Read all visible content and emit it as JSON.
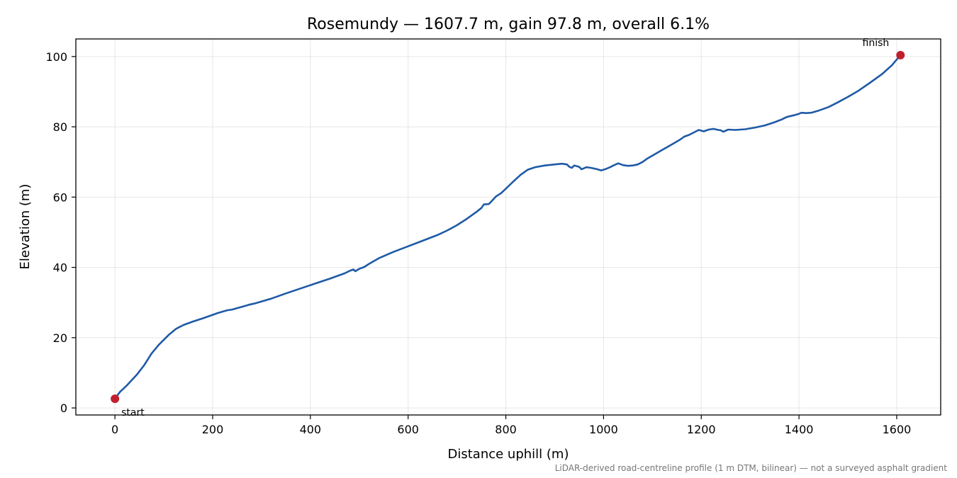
{
  "chart_data": {
    "type": "line",
    "title": "Rosemundy — 1607.7 m, gain 97.8 m, overall 6.1%",
    "xlabel": "Distance uphill (m)",
    "ylabel": "Elevation (m)",
    "xlim": [
      -80,
      1690
    ],
    "ylim": [
      -2,
      105
    ],
    "xticks": [
      0,
      200,
      400,
      600,
      800,
      1000,
      1200,
      1400,
      1600
    ],
    "yticks": [
      0,
      20,
      40,
      60,
      80,
      100
    ],
    "grid": true,
    "series": [
      {
        "color": "#1f5aa6",
        "x": [
          0,
          10,
          25,
          45,
          60,
          75,
          90,
          110,
          125,
          140,
          160,
          180,
          200,
          210,
          220,
          230,
          240,
          250,
          260,
          275,
          285,
          300,
          320,
          350,
          380,
          410,
          440,
          470,
          482,
          488,
          492,
          500,
          510,
          520,
          540,
          570,
          600,
          630,
          660,
          680,
          700,
          720,
          740,
          750,
          755,
          765,
          770,
          780,
          790,
          800,
          815,
          830,
          845,
          860,
          880,
          900,
          915,
          920,
          925,
          930,
          935,
          940,
          945,
          950,
          955,
          965,
          975,
          985,
          995,
          1005,
          1015,
          1020,
          1030,
          1040,
          1050,
          1060,
          1070,
          1080,
          1090,
          1100,
          1120,
          1140,
          1155,
          1165,
          1175,
          1185,
          1195,
          1205,
          1215,
          1225,
          1235,
          1240,
          1245,
          1255,
          1270,
          1290,
          1310,
          1330,
          1350,
          1365,
          1375,
          1390,
          1400,
          1405,
          1415,
          1425,
          1440,
          1460,
          1480,
          1500,
          1520,
          1545,
          1570,
          1590,
          1607.7
        ],
        "y": [
          2.6,
          4.5,
          6.5,
          9.5,
          12.2,
          15.5,
          18.0,
          20.8,
          22.5,
          23.6,
          24.6,
          25.5,
          26.5,
          27.0,
          27.4,
          27.8,
          28.0,
          28.4,
          28.8,
          29.4,
          29.7,
          30.3,
          31.1,
          32.6,
          34.0,
          35.4,
          36.8,
          38.3,
          39.1,
          39.4,
          38.9,
          39.6,
          40.1,
          41.0,
          42.6,
          44.4,
          46.0,
          47.6,
          49.2,
          50.5,
          52.0,
          53.8,
          55.8,
          56.9,
          57.9,
          58.0,
          58.7,
          60.2,
          61.1,
          62.4,
          64.4,
          66.3,
          67.8,
          68.5,
          69.0,
          69.3,
          69.5,
          69.4,
          69.3,
          68.6,
          68.3,
          69.0,
          68.8,
          68.6,
          67.9,
          68.5,
          68.3,
          68.0,
          67.6,
          68.0,
          68.6,
          69.0,
          69.6,
          69.1,
          68.9,
          69.0,
          69.3,
          70.0,
          71.0,
          71.8,
          73.4,
          75.0,
          76.2,
          77.2,
          77.7,
          78.4,
          79.1,
          78.7,
          79.2,
          79.4,
          79.1,
          79.0,
          78.6,
          79.2,
          79.1,
          79.3,
          79.8,
          80.4,
          81.3,
          82.1,
          82.8,
          83.3,
          83.7,
          84.0,
          83.9,
          84.0,
          84.6,
          85.6,
          87.0,
          88.5,
          90.1,
          92.5,
          95.0,
          97.5,
          100.4
        ]
      }
    ],
    "markers": [
      {
        "x": 0,
        "y": 2.6,
        "label": "start",
        "color": "#c0202d"
      },
      {
        "x": 1607.7,
        "y": 100.4,
        "label": "finish",
        "color": "#c0202d"
      }
    ],
    "footnote": "LiDAR-derived road-centreline profile (1 m DTM, bilinear) — not a surveyed asphalt gradient"
  }
}
